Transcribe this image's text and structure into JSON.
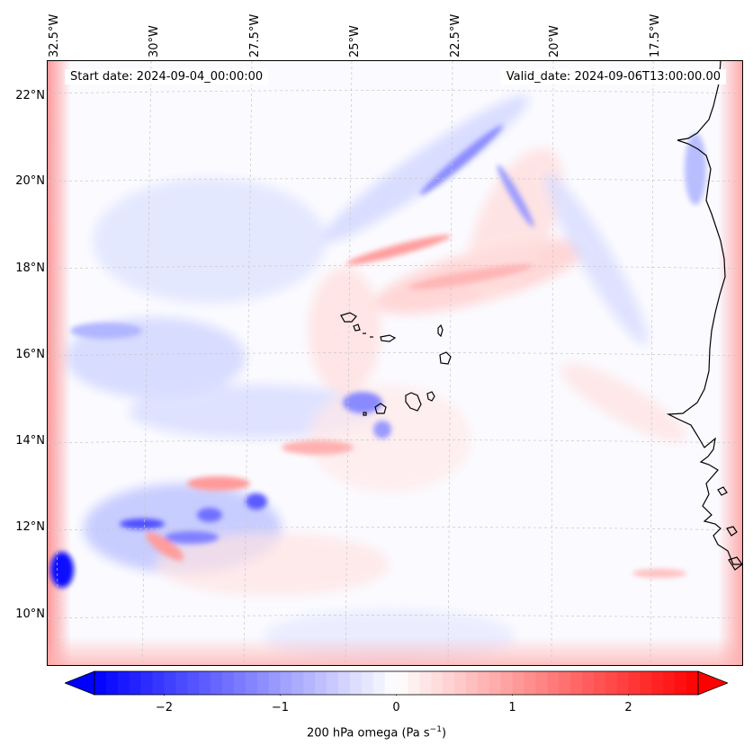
{
  "map": {
    "start_date": "Start date: 2024-09-04_00:00:00",
    "valid_date": "Valid_date: 2024-09-06T13:00:00.00",
    "longitude_labels": [
      "32.5°W",
      "30°W",
      "27.5°W",
      "25°W",
      "22.5°W",
      "20°W",
      "17.5°W"
    ],
    "latitude_labels": [
      "22°N",
      "20°N",
      "18°N",
      "16°N",
      "14°N",
      "12°N",
      "10°N"
    ],
    "extent": {
      "lon_min": -32.7,
      "lon_max": -15.6,
      "lat_min": 8.9,
      "lat_max": 22.8
    },
    "field": "200 hPa omega"
  },
  "colorbar": {
    "label_main": "200 hPa omega (Pa s",
    "label_exp": "−1",
    "label_tail": ")",
    "range": [
      -2.6,
      2.6
    ],
    "ticks": [
      "−2",
      "−1",
      "0",
      "1",
      "2"
    ],
    "tick_values": [
      -2,
      -1,
      0,
      1,
      2
    ],
    "extend": "both",
    "negative_color": "#0000ff",
    "neutral_color": "#ffffff",
    "positive_color": "#ff0000"
  }
}
